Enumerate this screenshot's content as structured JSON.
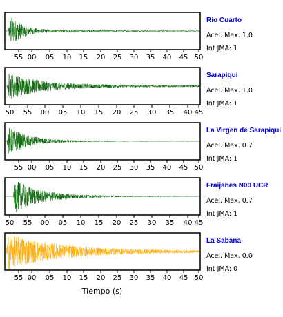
{
  "chart_data": {
    "type": "line",
    "xlabel": "Tiempo (s)",
    "x_unit": "s",
    "panels": [
      {
        "name": "Rio Cuarto",
        "acel_label": "Acel. Max. 1.0",
        "int_label": "Int JMA: 1",
        "color": "#006400",
        "ticks": [
          "55",
          "00",
          "05",
          "10",
          "15",
          "20",
          "25",
          "30",
          "35",
          "40",
          "45",
          "50"
        ],
        "show_tick_labels": true
      },
      {
        "name": "Sarapiqui",
        "acel_label": "Acel. Max. 1.0",
        "int_label": "Int JMA: 1",
        "color": "#006400",
        "ticks": [
          "50",
          "55",
          "00",
          "05",
          "10",
          "15",
          "20",
          "25",
          "30",
          "35",
          "40",
          "45"
        ],
        "show_tick_labels": true
      },
      {
        "name": "La Virgen de Sarapiqui",
        "acel_label": "Acel. Max. 0.7",
        "int_label": "Int JMA: 1",
        "color": "#006400",
        "ticks": [
          "55",
          "00",
          "05",
          "10",
          "15",
          "20",
          "25",
          "30",
          "35",
          "40",
          "45",
          "50"
        ],
        "show_tick_labels": true
      },
      {
        "name": "Fraijanes N00 UCR",
        "acel_label": "Acel. Max. 0.7",
        "int_label": "Int JMA: 1",
        "color": "#006400",
        "ticks": [
          "50",
          "55",
          "00",
          "05",
          "10",
          "15",
          "20",
          "25",
          "30",
          "35",
          "40",
          "45"
        ],
        "show_tick_labels": true
      },
      {
        "name": "La Sabana",
        "acel_label": "Acel. Max. 0.0",
        "int_label": "Int JMA: 0",
        "color": "#ffaa00",
        "ticks": [
          "55",
          "00",
          "05",
          "10",
          "15",
          "20",
          "25",
          "30",
          "35",
          "40",
          "45",
          "50"
        ],
        "show_tick_labels": true
      }
    ]
  }
}
